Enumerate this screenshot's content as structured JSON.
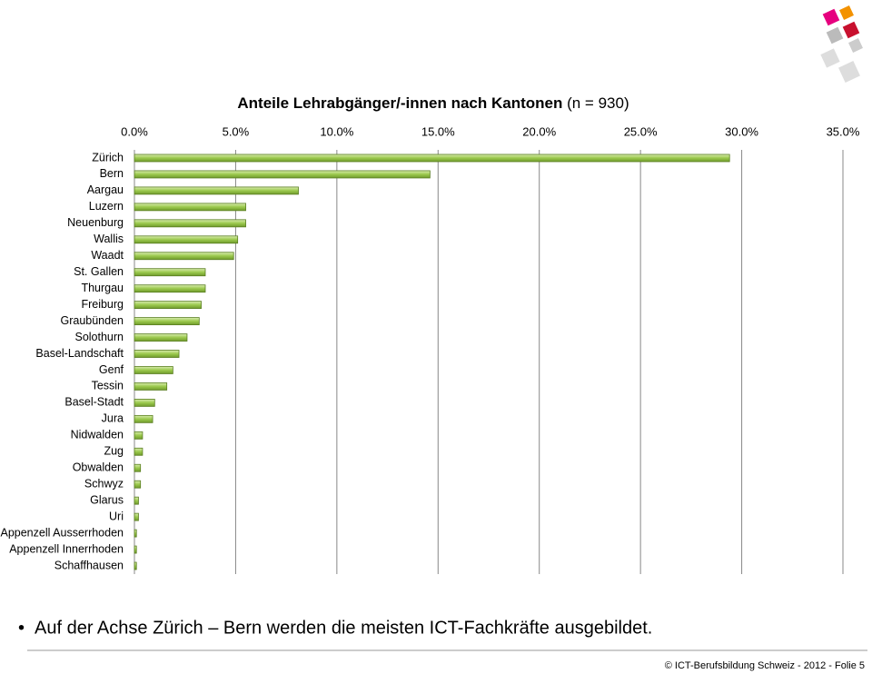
{
  "chart_data": {
    "type": "hbar",
    "title": "Anteile Lehrabgänger/-innen nach Kantonen",
    "subtitle": "(n = 930)",
    "categories": [
      "Zürich",
      "Bern",
      "Aargau",
      "Luzern",
      "Neuenburg",
      "Wallis",
      "Waadt",
      "St. Gallen",
      "Thurgau",
      "Freiburg",
      "Graubünden",
      "Solothurn",
      "Basel-Landschaft",
      "Genf",
      "Tessin",
      "Basel-Stadt",
      "Jura",
      "Nidwalden",
      "Zug",
      "Obwalden",
      "Schwyz",
      "Glarus",
      "Uri",
      "Appenzell Ausserrhoden",
      "Appenzell Innerrhoden",
      "Schaffhausen"
    ],
    "values": [
      29.4,
      14.6,
      8.1,
      5.5,
      5.5,
      5.1,
      4.9,
      3.5,
      3.5,
      3.3,
      3.2,
      2.6,
      2.2,
      1.9,
      1.6,
      1.0,
      0.9,
      0.4,
      0.4,
      0.3,
      0.3,
      0.2,
      0.2,
      0.1,
      0.1,
      0.1
    ],
    "color": "#9bc94d",
    "xlim": [
      0,
      35
    ],
    "xticks": [
      {
        "value": 0,
        "label": "0.0%"
      },
      {
        "value": 5,
        "label": "5.0%"
      },
      {
        "value": 10,
        "label": "10.0%"
      },
      {
        "value": 15,
        "label": "15.0%"
      },
      {
        "value": 20,
        "label": "20.0%"
      },
      {
        "value": 25,
        "label": "25.0%"
      },
      {
        "value": 30,
        "label": "30.0%"
      },
      {
        "value": 35,
        "label": "35.0%"
      }
    ],
    "grid": true
  },
  "slide": {
    "bullet": "Auf der Achse Zürich – Bern werden die meisten ICT-Fachkräfte ausgebildet.",
    "footer": "© ICT-Berufsbildung Schweiz - 2012 - Folie 5"
  }
}
